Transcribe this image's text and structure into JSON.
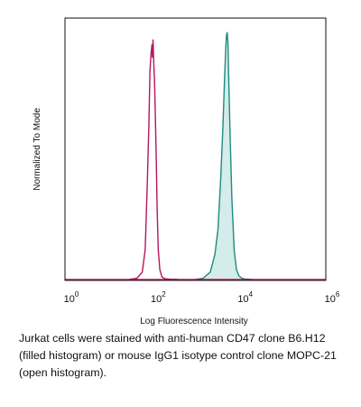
{
  "chart_data": {
    "type": "area",
    "title": "",
    "xlabel": "Log Fluorescence Intensity",
    "ylabel": "Normalized To Mode",
    "x_scale": "log",
    "xlim": [
      1,
      1000000
    ],
    "ylim": [
      0,
      100
    ],
    "grid": false,
    "legend": "none",
    "x_ticks": [
      {
        "base": "10",
        "exp": "0",
        "value": 1
      },
      {
        "base": "10",
        "exp": "2",
        "value": 100
      },
      {
        "base": "10",
        "exp": "4",
        "value": 10000
      },
      {
        "base": "10",
        "exp": "6",
        "value": 1000000
      }
    ],
    "series": [
      {
        "style": "filled",
        "line_color": "#1f8a80",
        "fill_color": "#d4ecea",
        "x": [
          1000,
          1500,
          2200,
          2800,
          3300,
          3800,
          4300,
          4700,
          5000,
          5200,
          5400,
          5600,
          5800,
          6300,
          6900,
          7800,
          8800,
          10000,
          11500,
          13500,
          16000,
          20000
        ],
        "y": [
          0,
          0.5,
          3,
          10,
          20,
          40,
          62,
          82,
          94,
          99,
          100,
          96,
          84,
          58,
          33,
          12,
          4,
          1.5,
          0.6,
          0.2,
          0.1,
          0
        ]
      },
      {
        "style": "open",
        "line_color": "#b5165a",
        "fill_color": "none",
        "x": [
          30,
          45,
          60,
          70,
          78,
          85,
          90,
          95,
          100,
          103,
          106,
          110,
          115,
          120,
          126,
          132,
          140,
          152,
          170,
          200,
          260,
          400
        ],
        "y": [
          0,
          0.5,
          3,
          12,
          38,
          62,
          84,
          91,
          95,
          90,
          97,
          88,
          80,
          66,
          48,
          28,
          12,
          4,
          1,
          0.3,
          0.1,
          0
        ]
      }
    ],
    "caption": "Jurkat cells were stained with anti-human CD47 clone B6.H12 (filled histogram) or mouse IgG1 isotype control clone MOPC-21 (open histogram)."
  }
}
